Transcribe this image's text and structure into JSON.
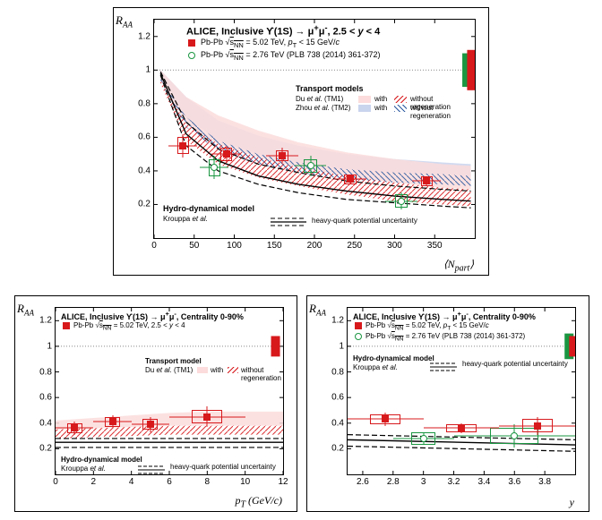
{
  "top": {
    "ylabel_html": "R<sub>AA</sub>",
    "xlabel_html": "⟨N<sub>part</sub>⟩",
    "title_html": "ALICE, Inclusive  ϒ(1S) → μ<sup>+</sup>μ<sup>-</sup>, 2.5 < <i>y</i> < 4",
    "leg1_html": "Pb-Pb √<span style='text-decoration:overline'>s<sub>NN</sub></span> = 5.02 TeV, <i>p</i><sub>T</sub> < 15 GeV/<i>c</i>",
    "leg2_html": "Pb-Pb √<span style='text-decoration:overline'>s<sub>NN</sub></span> = 2.76 TeV (PLB 738 (2014) 361-372)",
    "transport_title": "Transport models",
    "tm1": "Du <i>et al.</i> (TM1)",
    "tm2": "Zhou <i>et al.</i> (TM2)",
    "with": "with",
    "without": "without regeneration",
    "hydro_title": "Hydro-dynamical model",
    "hydro_auth": "Krouppa <i>et al.</i>",
    "hydro_leg": "heavy-quark potential uncertainty",
    "xrange": [
      0,
      400
    ],
    "yrange": [
      0,
      1.3
    ],
    "yticks": [
      0.2,
      0.4,
      0.6,
      0.8,
      1,
      1.2
    ],
    "xticks": [
      0,
      50,
      100,
      150,
      200,
      250,
      300,
      350
    ],
    "colors": {
      "red": "#d7191c",
      "red_fill": "#fcdcdc",
      "blue": "#2c5aa0",
      "blue_fill": "#c9d4ed",
      "green": "#1a9641",
      "green_open": "#ffffff",
      "norm_red": "#d7191c",
      "norm_green": "#1a9641",
      "dash": "#000000"
    },
    "red_points": [
      {
        "x": 36,
        "y": 0.55,
        "ex": 18,
        "ey": 0.07,
        "box": 0.05
      },
      {
        "x": 90,
        "y": 0.5,
        "ex": 18,
        "ey": 0.05,
        "box": 0.04
      },
      {
        "x": 160,
        "y": 0.49,
        "ex": 20,
        "ey": 0.05,
        "box": 0.03
      },
      {
        "x": 245,
        "y": 0.35,
        "ex": 20,
        "ey": 0.03,
        "box": 0.03
      },
      {
        "x": 340,
        "y": 0.34,
        "ex": 18,
        "ey": 0.03,
        "box": 0.03
      }
    ],
    "green_points": [
      {
        "x": 75,
        "y": 0.42,
        "ex": 18,
        "ey": 0.07,
        "box": 0.05
      },
      {
        "x": 195,
        "y": 0.43,
        "ex": 20,
        "ey": 0.06,
        "box": 0.04
      },
      {
        "x": 308,
        "y": 0.22,
        "ex": 20,
        "ey": 0.05,
        "box": 0.04
      }
    ],
    "tm1_band": [
      [
        8,
        0.94,
        1.0
      ],
      [
        40,
        0.68,
        0.84
      ],
      [
        80,
        0.56,
        0.73
      ],
      [
        130,
        0.48,
        0.64
      ],
      [
        180,
        0.42,
        0.57
      ],
      [
        240,
        0.37,
        0.51
      ],
      [
        300,
        0.33,
        0.47
      ],
      [
        360,
        0.3,
        0.44
      ],
      [
        395,
        0.29,
        0.43
      ]
    ],
    "tm1_hatch": [
      [
        8,
        0.92,
        0.94
      ],
      [
        40,
        0.58,
        0.68
      ],
      [
        80,
        0.44,
        0.56
      ],
      [
        130,
        0.36,
        0.48
      ],
      [
        180,
        0.31,
        0.42
      ],
      [
        240,
        0.26,
        0.37
      ],
      [
        300,
        0.22,
        0.33
      ],
      [
        360,
        0.2,
        0.3
      ],
      [
        395,
        0.19,
        0.29
      ]
    ],
    "tm2_band": [
      [
        8,
        0.95,
        1.0
      ],
      [
        40,
        0.72,
        0.84
      ],
      [
        80,
        0.58,
        0.7
      ],
      [
        130,
        0.5,
        0.61
      ],
      [
        180,
        0.45,
        0.55
      ],
      [
        240,
        0.41,
        0.5
      ],
      [
        300,
        0.39,
        0.47
      ],
      [
        360,
        0.38,
        0.45
      ],
      [
        395,
        0.37,
        0.44
      ]
    ],
    "tm2_hatch": [
      [
        8,
        0.93,
        0.95
      ],
      [
        40,
        0.66,
        0.72
      ],
      [
        80,
        0.52,
        0.58
      ],
      [
        130,
        0.44,
        0.5
      ],
      [
        180,
        0.39,
        0.45
      ],
      [
        240,
        0.35,
        0.41
      ],
      [
        300,
        0.33,
        0.39
      ],
      [
        360,
        0.32,
        0.38
      ],
      [
        395,
        0.31,
        0.37
      ]
    ],
    "hydro_upper": [
      [
        8,
        0.99
      ],
      [
        40,
        0.69
      ],
      [
        80,
        0.53
      ],
      [
        130,
        0.44
      ],
      [
        180,
        0.39
      ],
      [
        240,
        0.34
      ],
      [
        300,
        0.31
      ],
      [
        360,
        0.29
      ],
      [
        395,
        0.28
      ]
    ],
    "hydro_mid": [
      [
        8,
        0.98
      ],
      [
        40,
        0.62
      ],
      [
        80,
        0.46
      ],
      [
        130,
        0.37
      ],
      [
        180,
        0.32
      ],
      [
        240,
        0.28
      ],
      [
        300,
        0.25
      ],
      [
        360,
        0.23
      ],
      [
        395,
        0.22
      ]
    ],
    "hydro_lower": [
      [
        8,
        0.97
      ],
      [
        40,
        0.55
      ],
      [
        80,
        0.4
      ],
      [
        130,
        0.32
      ],
      [
        180,
        0.27
      ],
      [
        240,
        0.23
      ],
      [
        300,
        0.21
      ],
      [
        360,
        0.19
      ],
      [
        395,
        0.18
      ]
    ],
    "norm_boxes": [
      {
        "x": 390,
        "ylo": 0.9,
        "yhi": 1.1,
        "color": "#1a9641"
      },
      {
        "x": 396,
        "ylo": 0.88,
        "yhi": 1.12,
        "color": "#d7191c"
      }
    ]
  },
  "bl": {
    "ylabel_html": "R<sub>AA</sub>",
    "xlabel_html": "<i>p</i><sub>T</sub> (GeV/<i>c</i>)",
    "title_html": "ALICE, Inclusive  ϒ(1S) → μ<sup>+</sup>μ<sup>-</sup>, Centrality 0-90%",
    "leg1_html": "Pb-Pb √<span style='text-decoration:overline'>s<sub>NN</sub></span> = 5.02 TeV, 2.5 < <i>y</i> < 4",
    "transport_title": "Transport model",
    "tm1": "Du <i>et al.</i> (TM1)",
    "with": "with",
    "without": "without regeneration",
    "hydro_title": "Hydro-dynamical model",
    "hydro_auth": "Krouppa <i>et al.</i>",
    "hydro_leg": "heavy-quark potential uncertainty",
    "xrange": [
      0,
      12
    ],
    "yrange": [
      0,
      1.3
    ],
    "yticks": [
      0.2,
      0.4,
      0.6,
      0.8,
      1,
      1.2
    ],
    "xticks": [
      0,
      2,
      4,
      6,
      8,
      10,
      12
    ],
    "red_points": [
      {
        "x": 1,
        "y": 0.36,
        "ex": 1,
        "ey": 0.05,
        "box": 0.04
      },
      {
        "x": 3,
        "y": 0.41,
        "ex": 1,
        "ey": 0.05,
        "box": 0.04
      },
      {
        "x": 5,
        "y": 0.39,
        "ex": 1,
        "ey": 0.06,
        "box": 0.04
      },
      {
        "x": 8,
        "y": 0.45,
        "ex": 2,
        "ey": 0.08,
        "box": 0.05
      }
    ],
    "tm1_band": [
      [
        0,
        0.35,
        0.42
      ],
      [
        2,
        0.36,
        0.44
      ],
      [
        4,
        0.37,
        0.46
      ],
      [
        6,
        0.38,
        0.48
      ],
      [
        8,
        0.38,
        0.49
      ],
      [
        10,
        0.38,
        0.49
      ],
      [
        12,
        0.38,
        0.49
      ]
    ],
    "tm1_hatch": [
      [
        0,
        0.28,
        0.35
      ],
      [
        2,
        0.29,
        0.36
      ],
      [
        4,
        0.3,
        0.37
      ],
      [
        6,
        0.31,
        0.38
      ],
      [
        8,
        0.31,
        0.38
      ],
      [
        10,
        0.31,
        0.38
      ],
      [
        12,
        0.31,
        0.38
      ]
    ],
    "hydro_upper": [
      [
        0,
        0.28
      ],
      [
        12,
        0.28
      ]
    ],
    "hydro_mid": [
      [
        0,
        0.25
      ],
      [
        12,
        0.25
      ]
    ],
    "hydro_lower": [
      [
        0,
        0.21
      ],
      [
        12,
        0.21
      ]
    ],
    "norm_boxes": [
      {
        "x": 11.6,
        "ylo": 0.92,
        "yhi": 1.08,
        "color": "#d7191c"
      }
    ]
  },
  "br": {
    "ylabel_html": "R<sub>AA</sub>",
    "xlabel_html": "<i>y</i>",
    "title_html": "ALICE, Inclusive  ϒ(1S) → μ<sup>+</sup>μ<sup>-</sup>, Centrality 0-90%",
    "leg1_html": "Pb-Pb √<span style='text-decoration:overline'>s<sub>NN</sub></span> = 5.02 TeV, <i>p</i><sub>T</sub> < 15 GeV/<i>c</i>",
    "leg2_html": "Pb-Pb √<span style='text-decoration:overline'>s<sub>NN</sub></span> = 2.76 TeV (PLB 738 (2014) 361-372)",
    "hydro_title": "Hydro-dynamical model",
    "hydro_auth": "Krouppa <i>et al.</i>",
    "hydro_leg": "heavy-quark potential uncertainty",
    "xrange": [
      2.5,
      4.0
    ],
    "yrange": [
      0,
      1.3
    ],
    "yticks": [
      0.2,
      0.4,
      0.6,
      0.8,
      1,
      1.2
    ],
    "xticks": [
      2.6,
      2.8,
      3.0,
      3.2,
      3.4,
      3.6,
      3.8
    ],
    "red_points": [
      {
        "x": 2.75,
        "y": 0.43,
        "ex": 0.25,
        "ey": 0.05,
        "box": 0.04
      },
      {
        "x": 3.25,
        "y": 0.36,
        "ex": 0.25,
        "ey": 0.04,
        "box": 0.03
      },
      {
        "x": 3.75,
        "y": 0.38,
        "ex": 0.25,
        "ey": 0.07,
        "box": 0.05
      }
    ],
    "green_points": [
      {
        "x": 3.0,
        "y": 0.28,
        "ex": 0.2,
        "ey": 0.05,
        "box": 0.05
      },
      {
        "x": 3.6,
        "y": 0.3,
        "ex": 0.4,
        "ey": 0.09,
        "box": 0.06
      }
    ],
    "hydro_upper": [
      [
        2.5,
        0.31
      ],
      [
        4.0,
        0.27
      ]
    ],
    "hydro_mid": [
      [
        2.5,
        0.27
      ],
      [
        4.0,
        0.23
      ]
    ],
    "hydro_lower": [
      [
        2.5,
        0.22
      ],
      [
        4.0,
        0.18
      ]
    ],
    "norm_boxes": [
      {
        "x": 3.96,
        "ylo": 0.9,
        "yhi": 1.1,
        "color": "#1a9641"
      },
      {
        "x": 3.99,
        "ylo": 0.92,
        "yhi": 1.08,
        "color": "#d7191c"
      }
    ]
  }
}
